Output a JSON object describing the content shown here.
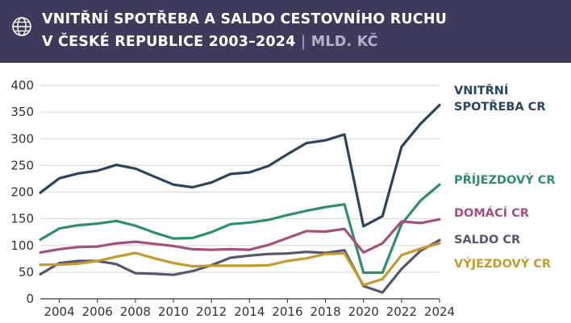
{
  "header": {
    "title_line1": "VNITŘNÍ SPOTŘEBA A SALDO CESTOVNÍHO RUCHU",
    "title_line2": "V ČESKÉ REPUBLICE 2003–2024",
    "separator": "|",
    "unit": "MLD. KČ",
    "icon": "globe-icon"
  },
  "chart_data": {
    "type": "line",
    "title": "VNITŘNÍ SPOTŘEBA A SALDO CESTOVNÍHO RUCHU V ČESKÉ REPUBLICE 2003–2024",
    "unit": "MLD. KČ",
    "x": [
      2003,
      2004,
      2005,
      2006,
      2007,
      2008,
      2009,
      2010,
      2011,
      2012,
      2013,
      2014,
      2015,
      2016,
      2017,
      2018,
      2019,
      2020,
      2021,
      2022,
      2023,
      2024
    ],
    "x_ticks": [
      2004,
      2006,
      2008,
      2010,
      2012,
      2014,
      2016,
      2018,
      2020,
      2022,
      2024
    ],
    "y_ticks": [
      0,
      50,
      100,
      150,
      200,
      250,
      300,
      350,
      400
    ],
    "ylim": [
      0,
      400
    ],
    "grid": true,
    "legend_placement": "right",
    "series": [
      {
        "name": "VNITŘNÍ SPOTŘEBA CR",
        "label_lines": [
          "VNITŘNÍ",
          "SPOTŘEBA CR"
        ],
        "color": "#2b4560",
        "values": [
          199,
          226,
          235,
          240,
          251,
          244,
          229,
          214,
          209,
          218,
          234,
          237,
          249,
          271,
          292,
          297,
          308,
          136,
          155,
          285,
          328,
          363
        ]
      },
      {
        "name": "PŘÍJEZDOVÝ CR",
        "label_lines": [
          "PŘÍJEZDOVÝ CR"
        ],
        "color": "#2e8f6e",
        "values": [
          111,
          132,
          138,
          141,
          146,
          137,
          124,
          113,
          114,
          125,
          140,
          143,
          148,
          157,
          165,
          172,
          177,
          49,
          49,
          140,
          184,
          214
        ]
      },
      {
        "name": "DOMÁCÍ CR",
        "label_lines": [
          "DOMÁCÍ CR"
        ],
        "color": "#a6517b",
        "values": [
          87,
          93,
          97,
          98,
          104,
          107,
          103,
          99,
          93,
          92,
          93,
          92,
          101,
          114,
          127,
          126,
          131,
          87,
          104,
          145,
          142,
          149
        ]
      },
      {
        "name": "SALDO CR",
        "label_lines": [
          "SALDO CR"
        ],
        "color": "#5b5470",
        "values": [
          46,
          67,
          71,
          71,
          65,
          48,
          47,
          45,
          52,
          63,
          77,
          81,
          84,
          85,
          88,
          86,
          91,
          24,
          12,
          56,
          90,
          110
        ]
      },
      {
        "name": "VÝJEZDOVÝ CR",
        "label_lines": [
          "VÝJEZDOVÝ CR"
        ],
        "color": "#c69a2c",
        "values": [
          64,
          64,
          66,
          71,
          79,
          86,
          76,
          67,
          61,
          62,
          62,
          62,
          63,
          71,
          76,
          84,
          85,
          26,
          37,
          82,
          94,
          104
        ]
      }
    ]
  }
}
